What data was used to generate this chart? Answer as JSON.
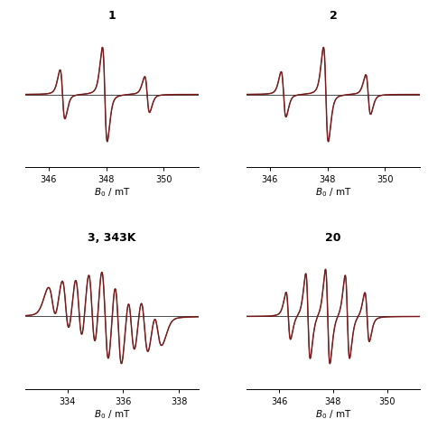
{
  "bg_color": "#ffffff",
  "exp_color": "#8B1A1A",
  "sim_color": "#000000",
  "panels": [
    {
      "title": "1",
      "xmin": 345.2,
      "xmax": 351.2,
      "xticks": [
        346,
        348,
        350
      ],
      "xlabel": "$B_0$ / mT"
    },
    {
      "title": "2",
      "xmin": 345.2,
      "xmax": 351.2,
      "xticks": [
        346,
        348,
        350
      ],
      "xlabel": "$B_0$ / mT"
    },
    {
      "title": "3, 343K",
      "xmin": 332.5,
      "xmax": 338.7,
      "xticks": [
        334,
        336,
        338
      ],
      "xlabel": "$B_0$ / mT"
    },
    {
      "title": "20",
      "xmin": 344.8,
      "xmax": 351.2,
      "xticks": [
        346,
        348,
        350
      ],
      "xlabel": "$B_0$ / mT"
    }
  ]
}
